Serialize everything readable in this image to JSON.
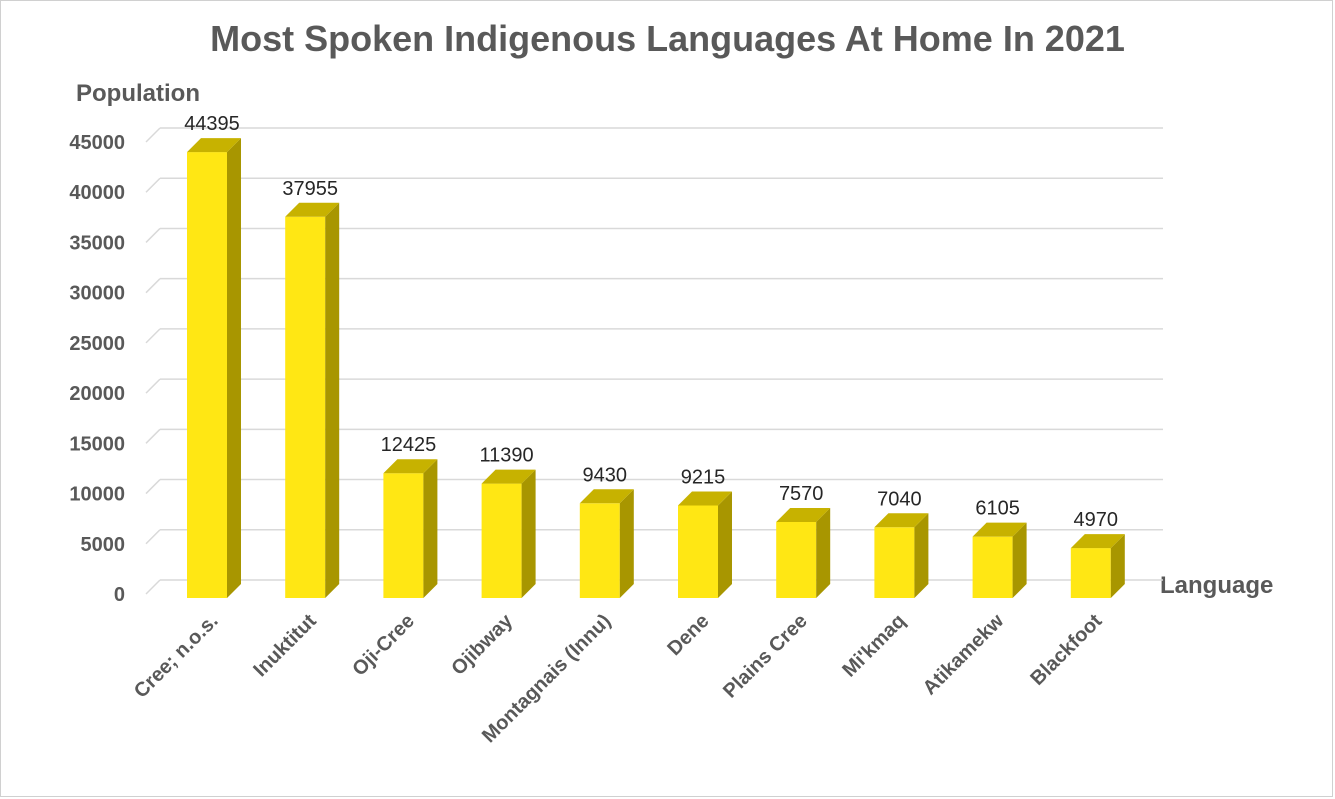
{
  "chart_data": {
    "type": "bar",
    "title": "Most Spoken Indigenous Languages At Home In 2021",
    "xlabel": "Language",
    "ylabel": "Population",
    "categories": [
      "Cree; n.o.s.",
      "Inuktitut",
      "Oji-Cree",
      "Ojibway",
      "Montagnais (Innu)",
      "Dene",
      "Plains Cree",
      "Mi'kmaq",
      "Atikamekw",
      "Blackfoot"
    ],
    "values": [
      44395,
      37955,
      12425,
      11390,
      9430,
      9215,
      7570,
      7040,
      6105,
      4970
    ],
    "ylim": [
      0,
      45000
    ],
    "yticks": [
      0,
      5000,
      10000,
      15000,
      20000,
      25000,
      30000,
      35000,
      40000,
      45000
    ],
    "grid": true,
    "legend": "none",
    "colors": {
      "bar_front": "#FFE714",
      "bar_side": "#A89600",
      "bar_top": "#C7B200",
      "grid": "#d9d9d9",
      "text": "#595959"
    }
  }
}
